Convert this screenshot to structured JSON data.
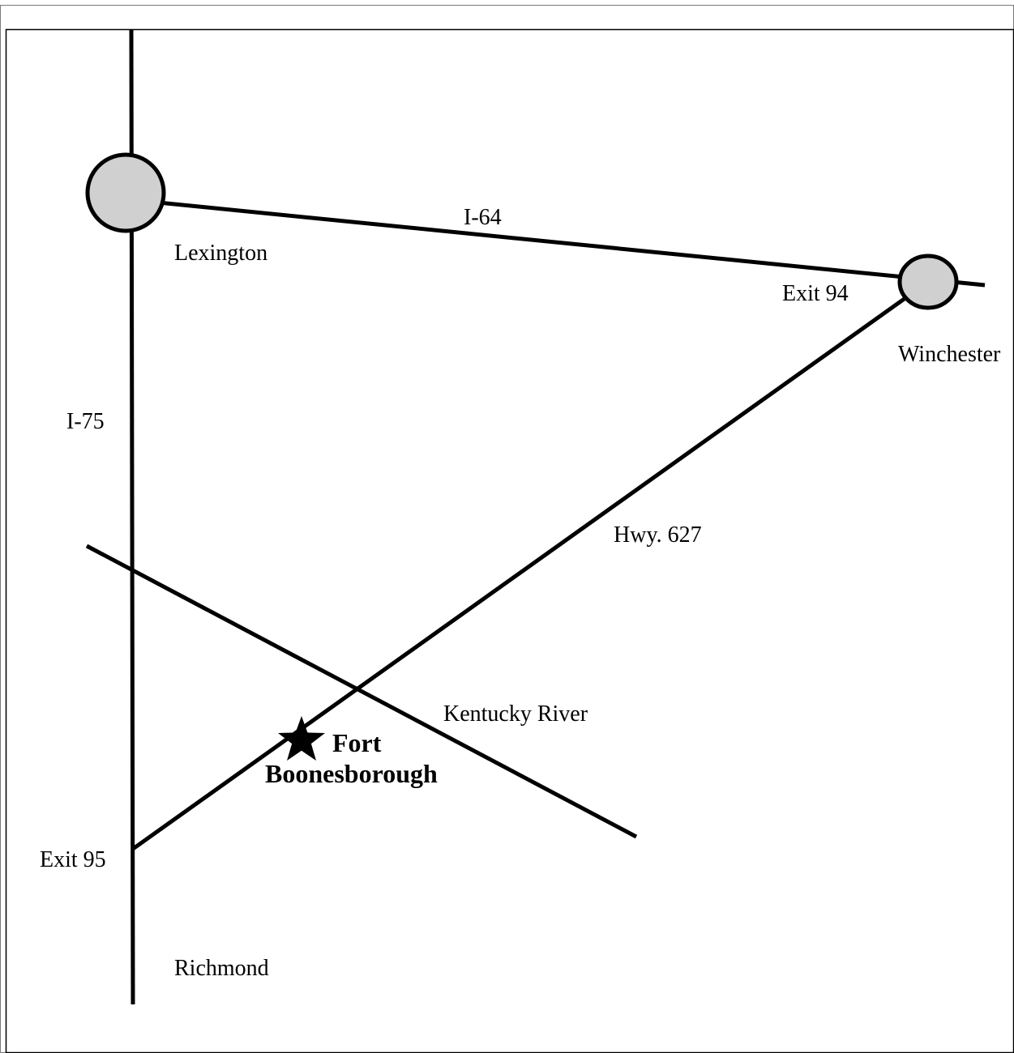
{
  "map": {
    "colors": {
      "ink": "#000000",
      "city_fill": "#d0d0d0",
      "background": "#ffffff",
      "frame": "#7a7a7a"
    },
    "cities": {
      "lexington": "Lexington",
      "winchester": "Winchester",
      "richmond": "Richmond"
    },
    "roads": {
      "i64": "I-64",
      "i75": "I-75",
      "hwy627": "Hwy. 627"
    },
    "exits": {
      "exit94": "Exit 94",
      "exit95": "Exit 95"
    },
    "river": "Kentucky River",
    "destination": {
      "line1": "Fort",
      "line2": "Boonesborough",
      "marker_icon": "star-icon"
    }
  }
}
